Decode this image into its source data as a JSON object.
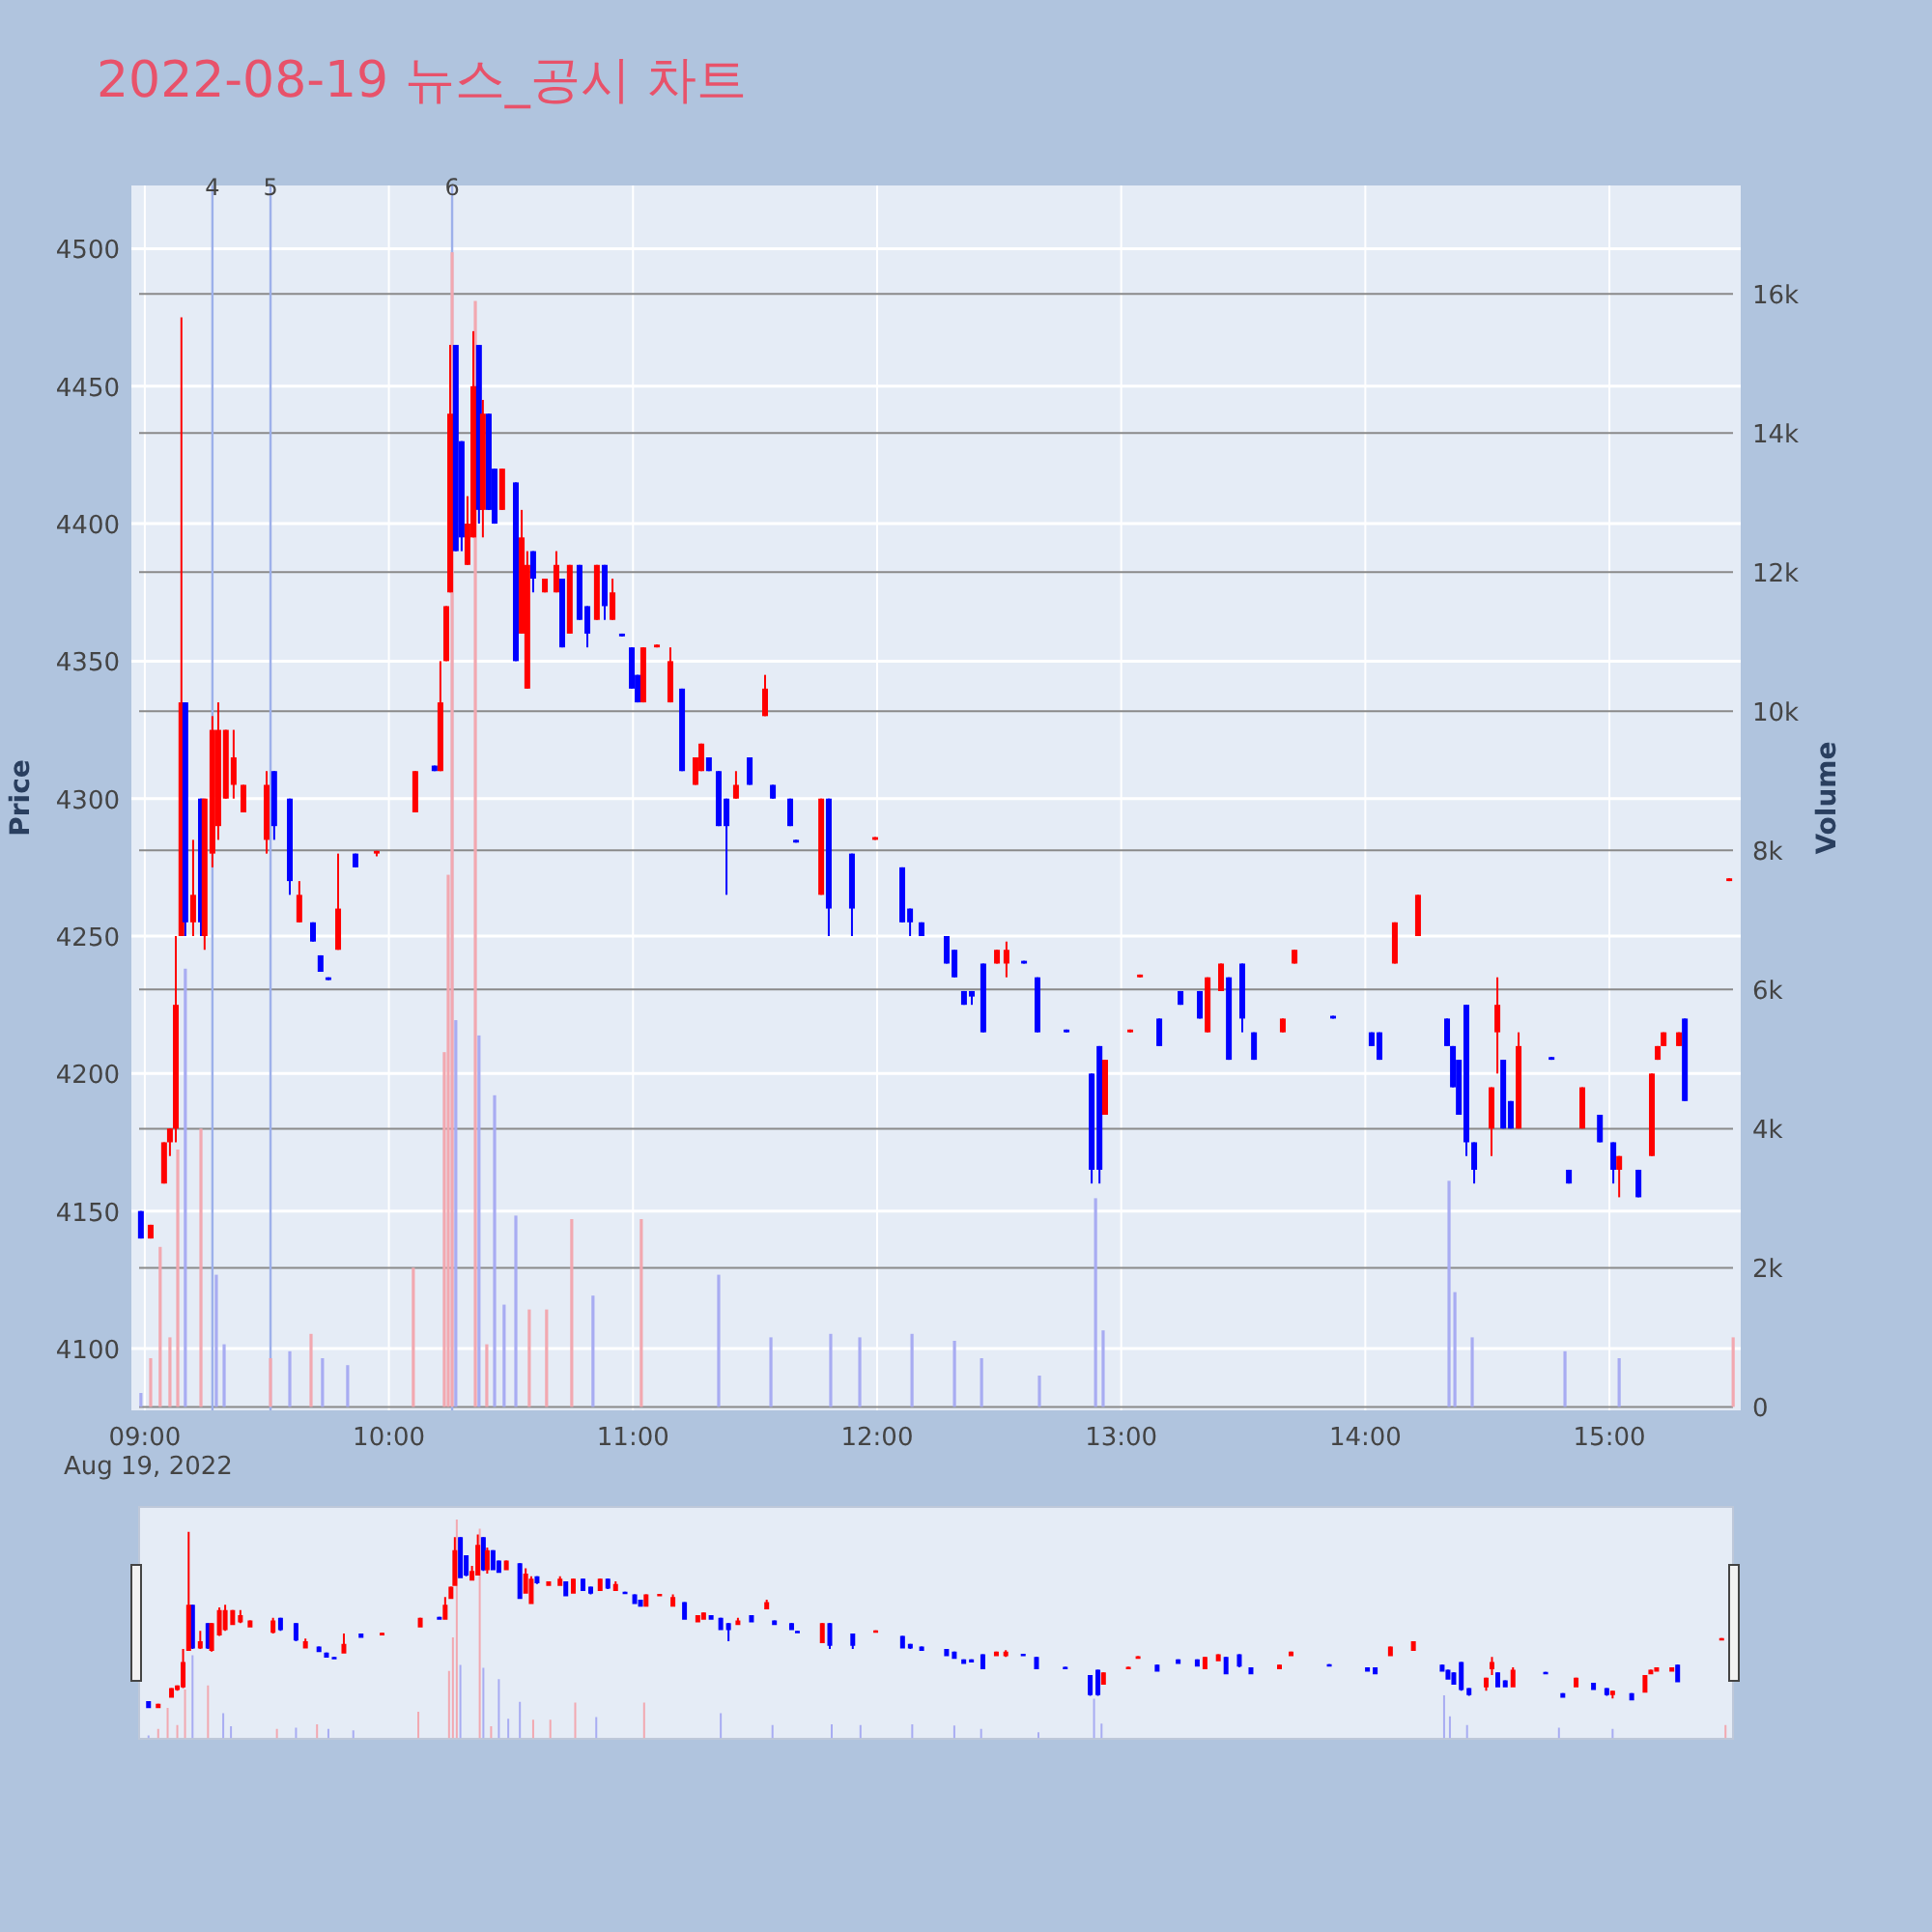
{
  "chart_data": {
    "type": "candlestick",
    "title": "2022-08-19 뉴스_공시 차트",
    "ylabel": "Price",
    "y2label": "Volume",
    "annotations": [
      "Aug 19, 2022",
      {
        "text": "4",
        "x": 9.277
      },
      {
        "text": "5",
        "x": 9.515
      },
      {
        "text": "6",
        "x": 10.259
      }
    ],
    "xlim": [
      8.945,
      15.538
    ],
    "xticks": [
      {
        "value": 9,
        "label": "09:00"
      },
      {
        "value": 10,
        "label": "10:00"
      },
      {
        "value": 11,
        "label": "11:00"
      },
      {
        "value": 12,
        "label": "12:00"
      },
      {
        "value": 13,
        "label": "13:00"
      },
      {
        "value": 14,
        "label": "14:00"
      },
      {
        "value": 15,
        "label": "15:00"
      }
    ],
    "ylim": [
      4077.5,
      4523
    ],
    "yticks": [
      4100,
      4150,
      4200,
      4250,
      4300,
      4350,
      4400,
      4450,
      4500
    ],
    "y2lim": [
      -50,
      17560
    ],
    "y2ticks": [
      0,
      {
        "value": 2000,
        "label": "2k"
      },
      {
        "value": 4000,
        "label": "4k"
      },
      {
        "value": 6000,
        "label": "6k"
      },
      {
        "value": 8000,
        "label": "8k"
      },
      {
        "value": 10000,
        "label": "10k"
      },
      {
        "value": 12000,
        "label": "12k"
      },
      {
        "value": 14000,
        "label": "14k"
      },
      {
        "value": 16000,
        "label": "16k"
      }
    ],
    "grid": true,
    "ref_lines": [
      {
        "axis": "x",
        "value": 9.277,
        "color": "#9db0ea"
      },
      {
        "axis": "x",
        "value": 9.515,
        "color": "#9db0ea"
      },
      {
        "axis": "x",
        "value": 10.259,
        "color": "#9db0ea"
      }
    ],
    "series": [
      {
        "type": "bar",
        "axis": "y2",
        "x": [
          8.984,
          9.024,
          9.063,
          9.103,
          9.135,
          9.166,
          9.23,
          9.293,
          9.325,
          9.515,
          9.594,
          9.681,
          9.728,
          9.831,
          10.1,
          10.227,
          10.243,
          10.259,
          10.274,
          10.354,
          10.369,
          10.401,
          10.433,
          10.472,
          10.52,
          10.575,
          10.646,
          10.749,
          10.836,
          11.034,
          11.351,
          11.565,
          11.81,
          11.929,
          12.143,
          12.317,
          12.428,
          12.665,
          12.895,
          12.926,
          14.343,
          14.367,
          14.438,
          14.818,
          15.04,
          15.507
        ],
        "values": [
          200,
          700,
          2300,
          1000,
          3700,
          6300,
          4000,
          1900,
          900,
          700,
          800,
          1050,
          700,
          600,
          2000,
          5100,
          7650,
          16600,
          5560,
          15900,
          5340,
          900,
          4480,
          1470,
          2750,
          1400,
          1400,
          2700,
          1600,
          2700,
          1900,
          1000,
          1050,
          1000,
          1050,
          950,
          700,
          450,
          3000,
          1100,
          3250,
          1650,
          1000,
          800,
          700,
          1000
        ],
        "colors": [
          "#a8acf2",
          "#f2a8b0",
          "#f2a8b0",
          "#f2a8b0",
          "#f2a8b0",
          "#a8acf2",
          "#f2a8b0",
          "#a8acf2",
          "#a8acf2",
          "#f2a8b0",
          "#a8acf2",
          "#f2a8b0",
          "#a8acf2",
          "#a8acf2",
          "#f2a8b0",
          "#f2a8b0",
          "#f2a8b0",
          "#f2a8b0",
          "#a8acf2",
          "#f2a8b0",
          "#a8acf2",
          "#f2a8b0",
          "#a8acf2",
          "#a8acf2",
          "#a8acf2",
          "#f2a8b0",
          "#f2a8b0",
          "#f2a8b0",
          "#a8acf2",
          "#f2a8b0",
          "#a8acf2",
          "#a8acf2",
          "#a8acf2",
          "#a8acf2",
          "#a8acf2",
          "#a8acf2",
          "#a8acf2",
          "#a8acf2",
          "#a8acf2",
          "#a8acf2",
          "#a8acf2",
          "#a8acf2",
          "#a8acf2",
          "#a8acf2",
          "#a8acf2",
          "#f2a8b0"
        ]
      },
      {
        "type": "candlestick",
        "x": [
          8.984,
          9.024,
          9.079,
          9.103,
          9.127,
          9.15,
          9.166,
          9.198,
          9.23,
          9.245,
          9.277,
          9.301,
          9.332,
          9.364,
          9.404,
          9.499,
          9.53,
          9.594,
          9.633,
          9.689,
          9.72,
          9.752,
          9.792,
          9.863,
          9.95,
          10.108,
          10.187,
          10.211,
          10.235,
          10.251,
          10.274,
          10.298,
          10.322,
          10.346,
          10.369,
          10.385,
          10.409,
          10.433,
          10.464,
          10.52,
          10.544,
          10.567,
          10.591,
          10.639,
          10.686,
          10.71,
          10.741,
          10.781,
          10.813,
          10.852,
          10.884,
          10.916,
          10.955,
          10.995,
          11.019,
          11.042,
          11.098,
          11.153,
          11.201,
          11.256,
          11.28,
          11.311,
          11.351,
          11.383,
          11.422,
          11.478,
          11.541,
          11.573,
          11.644,
          11.668,
          11.771,
          11.802,
          11.897,
          11.992,
          12.103,
          12.135,
          12.182,
          12.285,
          12.317,
          12.356,
          12.388,
          12.435,
          12.491,
          12.53,
          12.602,
          12.657,
          12.776,
          12.879,
          12.911,
          12.934,
          13.037,
          13.077,
          13.156,
          13.243,
          13.322,
          13.354,
          13.409,
          13.441,
          13.496,
          13.544,
          13.662,
          13.71,
          13.868,
          14.026,
          14.058,
          14.121,
          14.216,
          14.335,
          14.359,
          14.383,
          14.414,
          14.446,
          14.517,
          14.541,
          14.565,
          14.596,
          14.628,
          14.763,
          14.834,
          14.889,
          14.961,
          15.016,
          15.04,
          15.119,
          15.174,
          15.198,
          15.222,
          15.285,
          15.309,
          15.491
        ],
        "ohlc": [
          [
            4150,
            4150,
            4140,
            4140
          ],
          [
            4140,
            4145,
            4140,
            4145
          ],
          [
            4160,
            4175,
            4160,
            4175
          ],
          [
            4175,
            4180,
            4170,
            4180
          ],
          [
            4180,
            4250,
            4175,
            4225
          ],
          [
            4250,
            4475,
            4250,
            4335
          ],
          [
            4335,
            4335,
            4250,
            4255
          ],
          [
            4255,
            4285,
            4250,
            4265
          ],
          [
            4300,
            4300,
            4250,
            4255
          ],
          [
            4250,
            4300,
            4245,
            4300
          ],
          [
            4280,
            4330,
            4275,
            4325
          ],
          [
            4290,
            4335,
            4285,
            4325
          ],
          [
            4300,
            4325,
            4300,
            4325
          ],
          [
            4305,
            4325,
            4300,
            4315
          ],
          [
            4295,
            4305,
            4295,
            4305
          ],
          [
            4285,
            4310,
            4280,
            4305
          ],
          [
            4310,
            4310,
            4285,
            4290
          ],
          [
            4300,
            4300,
            4265,
            4270
          ],
          [
            4255,
            4270,
            4255,
            4265
          ],
          [
            4255,
            4255,
            4248,
            4248
          ],
          [
            4243,
            4243,
            4237,
            4237
          ],
          [
            4235,
            4235,
            4234,
            4234
          ],
          [
            4245,
            4280,
            4245,
            4260
          ],
          [
            4280,
            4280,
            4275,
            4275
          ],
          [
            4280,
            4281,
            4279,
            4281
          ],
          [
            4295,
            4310,
            4295,
            4310
          ],
          [
            4312,
            4312,
            4310,
            4310
          ],
          [
            4310,
            4350,
            4310,
            4335
          ],
          [
            4350,
            4370,
            4350,
            4370
          ],
          [
            4375,
            4465,
            4375,
            4440
          ],
          [
            4465,
            4465,
            4390,
            4390
          ],
          [
            4430,
            4430,
            4390,
            4395
          ],
          [
            4385,
            4410,
            4385,
            4400
          ],
          [
            4395,
            4470,
            4395,
            4450
          ],
          [
            4465,
            4465,
            4400,
            4405
          ],
          [
            4405,
            4445,
            4395,
            4440
          ],
          [
            4440,
            4440,
            4405,
            4405
          ],
          [
            4420,
            4420,
            4400,
            4400
          ],
          [
            4405,
            4420,
            4405,
            4420
          ],
          [
            4415,
            4415,
            4350,
            4350
          ],
          [
            4360,
            4405,
            4360,
            4395
          ],
          [
            4340,
            4390,
            4340,
            4385
          ],
          [
            4390,
            4390,
            4375,
            4380
          ],
          [
            4375,
            4380,
            4375,
            4380
          ],
          [
            4375,
            4390,
            4375,
            4385
          ],
          [
            4380,
            4380,
            4355,
            4355
          ],
          [
            4360,
            4385,
            4360,
            4385
          ],
          [
            4385,
            4385,
            4365,
            4365
          ],
          [
            4370,
            4370,
            4355,
            4360
          ],
          [
            4365,
            4385,
            4365,
            4385
          ],
          [
            4385,
            4385,
            4365,
            4370
          ],
          [
            4365,
            4380,
            4365,
            4375
          ],
          [
            4360,
            4360,
            4359,
            4359
          ],
          [
            4355,
            4355,
            4340,
            4340
          ],
          [
            4345,
            4345,
            4335,
            4335
          ],
          [
            4335,
            4355,
            4335,
            4355
          ],
          [
            4355,
            4356,
            4355,
            4356
          ],
          [
            4335,
            4355,
            4335,
            4350
          ],
          [
            4340,
            4340,
            4310,
            4310
          ],
          [
            4305,
            4315,
            4305,
            4315
          ],
          [
            4310,
            4320,
            4310,
            4320
          ],
          [
            4315,
            4315,
            4310,
            4310
          ],
          [
            4310,
            4310,
            4290,
            4290
          ],
          [
            4300,
            4300,
            4265,
            4290
          ],
          [
            4300,
            4310,
            4300,
            4305
          ],
          [
            4315,
            4315,
            4305,
            4305
          ],
          [
            4330,
            4345,
            4330,
            4340
          ],
          [
            4305,
            4305,
            4300,
            4300
          ],
          [
            4300,
            4300,
            4290,
            4290
          ],
          [
            4285,
            4285,
            4284,
            4284
          ],
          [
            4265,
            4300,
            4265,
            4300
          ],
          [
            4300,
            4300,
            4250,
            4260
          ],
          [
            4280,
            4280,
            4250,
            4260
          ],
          [
            4285,
            4286,
            4285,
            4286
          ],
          [
            4275,
            4275,
            4255,
            4255
          ],
          [
            4260,
            4260,
            4250,
            4255
          ],
          [
            4255,
            4255,
            4250,
            4250
          ],
          [
            4250,
            4250,
            4240,
            4240
          ],
          [
            4245,
            4245,
            4235,
            4235
          ],
          [
            4230,
            4230,
            4225,
            4225
          ],
          [
            4230,
            4230,
            4225,
            4228
          ],
          [
            4240,
            4240,
            4215,
            4215
          ],
          [
            4240,
            4245,
            4240,
            4245
          ],
          [
            4240,
            4248,
            4235,
            4245
          ],
          [
            4241,
            4241,
            4240,
            4240
          ],
          [
            4235,
            4235,
            4215,
            4215
          ],
          [
            4216,
            4216,
            4215,
            4215
          ],
          [
            4200,
            4200,
            4160,
            4165
          ],
          [
            4210,
            4210,
            4160,
            4165
          ],
          [
            4185,
            4205,
            4185,
            4205
          ],
          [
            4215,
            4216,
            4215,
            4216
          ],
          [
            4235,
            4236,
            4235,
            4236
          ],
          [
            4220,
            4220,
            4210,
            4210
          ],
          [
            4230,
            4230,
            4225,
            4225
          ],
          [
            4230,
            4230,
            4220,
            4220
          ],
          [
            4215,
            4235,
            4215,
            4235
          ],
          [
            4230,
            4240,
            4230,
            4240
          ],
          [
            4235,
            4235,
            4205,
            4205
          ],
          [
            4240,
            4240,
            4215,
            4220
          ],
          [
            4215,
            4215,
            4205,
            4205
          ],
          [
            4215,
            4220,
            4215,
            4220
          ],
          [
            4240,
            4245,
            4240,
            4245
          ],
          [
            4221,
            4221,
            4220,
            4220
          ],
          [
            4215,
            4215,
            4210,
            4210
          ],
          [
            4215,
            4215,
            4205,
            4205
          ],
          [
            4240,
            4255,
            4240,
            4255
          ],
          [
            4250,
            4265,
            4250,
            4265
          ],
          [
            4220,
            4220,
            4210,
            4210
          ],
          [
            4210,
            4210,
            4195,
            4195
          ],
          [
            4205,
            4205,
            4185,
            4185
          ],
          [
            4225,
            4225,
            4170,
            4175
          ],
          [
            4175,
            4175,
            4160,
            4165
          ],
          [
            4180,
            4195,
            4170,
            4195
          ],
          [
            4215,
            4235,
            4200,
            4225
          ],
          [
            4205,
            4205,
            4180,
            4180
          ],
          [
            4190,
            4190,
            4180,
            4180
          ],
          [
            4180,
            4215,
            4180,
            4210
          ],
          [
            4206,
            4206,
            4205,
            4205
          ],
          [
            4165,
            4165,
            4160,
            4160
          ],
          [
            4180,
            4195,
            4180,
            4195
          ],
          [
            4185,
            4185,
            4175,
            4175
          ],
          [
            4175,
            4175,
            4160,
            4165
          ],
          [
            4165,
            4170,
            4155,
            4170
          ],
          [
            4165,
            4165,
            4155,
            4155
          ],
          [
            4170,
            4200,
            4170,
            4200
          ],
          [
            4205,
            4210,
            4205,
            4210
          ],
          [
            4210,
            4215,
            4210,
            4215
          ],
          [
            4210,
            4215,
            4210,
            4215
          ],
          [
            4220,
            4220,
            4190,
            4190
          ],
          [
            4270,
            4271,
            4270,
            4271
          ]
        ],
        "colors": [
          "#0000ff",
          "#ff0000",
          "#ff0000",
          "#ff0000",
          "#ff0000",
          "#ff0000",
          "#0000ff",
          "#ff0000",
          "#0000ff",
          "#ff0000",
          "#ff0000",
          "#ff0000",
          "#ff0000",
          "#ff0000",
          "#ff0000",
          "#ff0000",
          "#0000ff",
          "#0000ff",
          "#ff0000",
          "#0000ff",
          "#0000ff",
          "#0000ff",
          "#ff0000",
          "#0000ff",
          "#ff0000",
          "#ff0000",
          "#0000ff",
          "#ff0000",
          "#ff0000",
          "#ff0000",
          "#0000ff",
          "#0000ff",
          "#ff0000",
          "#ff0000",
          "#0000ff",
          "#ff0000",
          "#0000ff",
          "#0000ff",
          "#ff0000",
          "#0000ff",
          "#ff0000",
          "#ff0000",
          "#0000ff",
          "#ff0000",
          "#ff0000",
          "#0000ff",
          "#ff0000",
          "#0000ff",
          "#0000ff",
          "#ff0000",
          "#0000ff",
          "#ff0000",
          "#0000ff",
          "#0000ff",
          "#0000ff",
          "#ff0000",
          "#ff0000",
          "#ff0000",
          "#0000ff",
          "#ff0000",
          "#ff0000",
          "#0000ff",
          "#0000ff",
          "#0000ff",
          "#ff0000",
          "#0000ff",
          "#ff0000",
          "#0000ff",
          "#0000ff",
          "#0000ff",
          "#ff0000",
          "#0000ff",
          "#0000ff",
          "#ff0000",
          "#0000ff",
          "#0000ff",
          "#0000ff",
          "#0000ff",
          "#0000ff",
          "#0000ff",
          "#0000ff",
          "#0000ff",
          "#ff0000",
          "#ff0000",
          "#0000ff",
          "#0000ff",
          "#0000ff",
          "#0000ff",
          "#0000ff",
          "#ff0000",
          "#ff0000",
          "#ff0000",
          "#0000ff",
          "#0000ff",
          "#0000ff",
          "#ff0000",
          "#ff0000",
          "#0000ff",
          "#0000ff",
          "#0000ff",
          "#ff0000",
          "#ff0000",
          "#0000ff",
          "#0000ff",
          "#0000ff",
          "#ff0000",
          "#ff0000",
          "#0000ff",
          "#0000ff",
          "#0000ff",
          "#0000ff",
          "#0000ff",
          "#ff0000",
          "#ff0000",
          "#0000ff",
          "#0000ff",
          "#ff0000",
          "#0000ff",
          "#0000ff",
          "#ff0000",
          "#0000ff",
          "#0000ff",
          "#ff0000",
          "#0000ff",
          "#ff0000",
          "#ff0000",
          "#ff0000",
          "#ff0000",
          "#0000ff",
          "#ff0000"
        ]
      }
    ]
  }
}
